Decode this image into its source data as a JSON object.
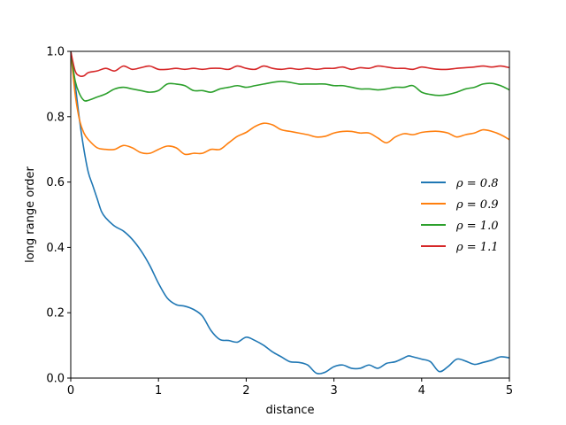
{
  "chart_data": {
    "type": "line",
    "xlabel": "distance",
    "ylabel": "long range order",
    "xlim": [
      0,
      5
    ],
    "ylim": [
      0,
      1
    ],
    "xticks": [
      0,
      1,
      2,
      3,
      4,
      5
    ],
    "xtick_labels": [
      "0",
      "1",
      "2",
      "3",
      "4",
      "5"
    ],
    "yticks": [
      0.0,
      0.2,
      0.4,
      0.6,
      0.8,
      1.0
    ],
    "ytick_labels": [
      "0.0",
      "0.2",
      "0.4",
      "0.6",
      "0.8",
      "1.0"
    ],
    "grid": false,
    "legend_position": "center-right",
    "series": [
      {
        "name": "ρ = 0.8",
        "color": "#1f77b4",
        "x": [
          0,
          0.05,
          0.1,
          0.15,
          0.2,
          0.25,
          0.3,
          0.35,
          0.4,
          0.5,
          0.6,
          0.7,
          0.8,
          0.9,
          1.0,
          1.1,
          1.2,
          1.3,
          1.4,
          1.5,
          1.6,
          1.7,
          1.8,
          1.9,
          2.0,
          2.1,
          2.2,
          2.3,
          2.4,
          2.5,
          2.6,
          2.7,
          2.8,
          2.9,
          3.0,
          3.1,
          3.2,
          3.3,
          3.4,
          3.5,
          3.6,
          3.7,
          3.8,
          3.85,
          3.9,
          4.0,
          4.1,
          4.2,
          4.3,
          4.4,
          4.5,
          4.6,
          4.7,
          4.8,
          4.9,
          5.0
        ],
        "y": [
          1.0,
          0.9,
          0.79,
          0.7,
          0.63,
          0.59,
          0.55,
          0.51,
          0.49,
          0.465,
          0.45,
          0.425,
          0.39,
          0.345,
          0.29,
          0.245,
          0.225,
          0.22,
          0.21,
          0.19,
          0.145,
          0.118,
          0.115,
          0.11,
          0.125,
          0.115,
          0.1,
          0.08,
          0.065,
          0.05,
          0.048,
          0.04,
          0.015,
          0.018,
          0.035,
          0.04,
          0.03,
          0.03,
          0.04,
          0.03,
          0.045,
          0.05,
          0.062,
          0.068,
          0.065,
          0.058,
          0.05,
          0.02,
          0.035,
          0.058,
          0.052,
          0.042,
          0.048,
          0.055,
          0.065,
          0.062
        ]
      },
      {
        "name": "ρ = 0.9",
        "color": "#ff7f0e",
        "x": [
          0,
          0.05,
          0.1,
          0.15,
          0.2,
          0.3,
          0.4,
          0.5,
          0.6,
          0.7,
          0.8,
          0.9,
          1.0,
          1.1,
          1.2,
          1.3,
          1.4,
          1.5,
          1.6,
          1.7,
          1.8,
          1.9,
          2.0,
          2.1,
          2.2,
          2.3,
          2.4,
          2.5,
          2.6,
          2.7,
          2.8,
          2.9,
          3.0,
          3.1,
          3.2,
          3.3,
          3.4,
          3.5,
          3.6,
          3.7,
          3.8,
          3.9,
          4.0,
          4.1,
          4.2,
          4.3,
          4.4,
          4.5,
          4.6,
          4.7,
          4.8,
          4.9,
          5.0
        ],
        "y": [
          1.0,
          0.87,
          0.79,
          0.75,
          0.73,
          0.705,
          0.7,
          0.7,
          0.712,
          0.705,
          0.69,
          0.688,
          0.7,
          0.71,
          0.705,
          0.685,
          0.688,
          0.688,
          0.7,
          0.7,
          0.72,
          0.74,
          0.752,
          0.77,
          0.78,
          0.775,
          0.76,
          0.755,
          0.75,
          0.745,
          0.738,
          0.74,
          0.75,
          0.755,
          0.755,
          0.75,
          0.75,
          0.735,
          0.72,
          0.738,
          0.748,
          0.745,
          0.752,
          0.755,
          0.755,
          0.75,
          0.738,
          0.745,
          0.75,
          0.76,
          0.755,
          0.745,
          0.73
        ]
      },
      {
        "name": "ρ = 1.0",
        "color": "#2ca02c",
        "x": [
          0,
          0.05,
          0.1,
          0.15,
          0.2,
          0.3,
          0.4,
          0.5,
          0.6,
          0.7,
          0.8,
          0.9,
          1.0,
          1.1,
          1.2,
          1.3,
          1.4,
          1.5,
          1.6,
          1.7,
          1.8,
          1.9,
          2.0,
          2.1,
          2.2,
          2.3,
          2.4,
          2.5,
          2.6,
          2.7,
          2.8,
          2.9,
          3.0,
          3.1,
          3.2,
          3.3,
          3.4,
          3.5,
          3.6,
          3.7,
          3.8,
          3.9,
          4.0,
          4.1,
          4.2,
          4.3,
          4.4,
          4.5,
          4.6,
          4.7,
          4.8,
          4.9,
          5.0
        ],
        "y": [
          1.0,
          0.91,
          0.87,
          0.85,
          0.85,
          0.86,
          0.87,
          0.885,
          0.89,
          0.885,
          0.88,
          0.875,
          0.88,
          0.9,
          0.9,
          0.895,
          0.88,
          0.88,
          0.875,
          0.885,
          0.89,
          0.895,
          0.89,
          0.895,
          0.9,
          0.905,
          0.908,
          0.905,
          0.9,
          0.9,
          0.9,
          0.9,
          0.895,
          0.895,
          0.89,
          0.885,
          0.885,
          0.882,
          0.885,
          0.89,
          0.89,
          0.895,
          0.875,
          0.868,
          0.865,
          0.868,
          0.875,
          0.885,
          0.89,
          0.9,
          0.902,
          0.895,
          0.882
        ]
      },
      {
        "name": "ρ = 1.1",
        "color": "#d62728",
        "x": [
          0,
          0.05,
          0.1,
          0.15,
          0.2,
          0.3,
          0.4,
          0.5,
          0.6,
          0.7,
          0.8,
          0.9,
          1.0,
          1.1,
          1.2,
          1.3,
          1.4,
          1.5,
          1.6,
          1.7,
          1.8,
          1.9,
          2.0,
          2.1,
          2.2,
          2.3,
          2.4,
          2.5,
          2.6,
          2.7,
          2.8,
          2.9,
          3.0,
          3.1,
          3.2,
          3.3,
          3.4,
          3.5,
          3.6,
          3.7,
          3.8,
          3.9,
          4.0,
          4.1,
          4.2,
          4.3,
          4.4,
          4.5,
          4.6,
          4.7,
          4.8,
          4.9,
          5.0
        ],
        "y": [
          1.0,
          0.94,
          0.925,
          0.925,
          0.935,
          0.94,
          0.948,
          0.94,
          0.955,
          0.945,
          0.95,
          0.955,
          0.945,
          0.945,
          0.948,
          0.945,
          0.948,
          0.945,
          0.948,
          0.948,
          0.945,
          0.955,
          0.948,
          0.945,
          0.955,
          0.948,
          0.945,
          0.948,
          0.945,
          0.948,
          0.945,
          0.948,
          0.948,
          0.952,
          0.945,
          0.95,
          0.948,
          0.955,
          0.952,
          0.948,
          0.948,
          0.945,
          0.952,
          0.948,
          0.945,
          0.945,
          0.948,
          0.95,
          0.952,
          0.955,
          0.952,
          0.955,
          0.95
        ]
      }
    ]
  }
}
